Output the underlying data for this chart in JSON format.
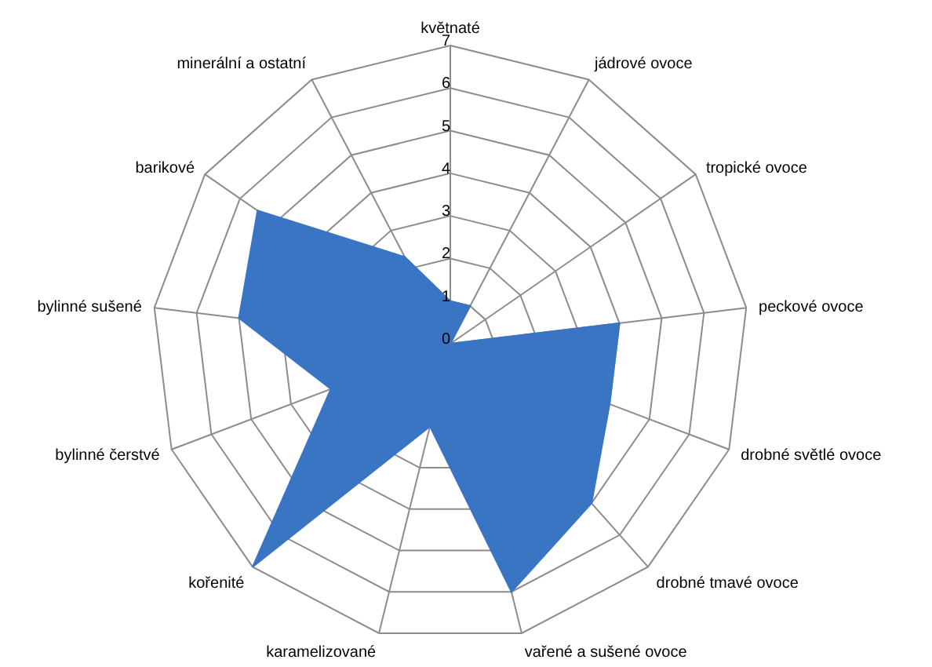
{
  "chart_data": {
    "type": "radar",
    "categories": [
      "květnaté",
      "jádrové ovoce",
      "tropické ovoce",
      "peckové ovoce",
      "drobné světlé ovoce",
      "drobné tmavé ovoce",
      "vařené a sušené ovoce",
      "karamelizované",
      "kořenité",
      "bylinné čerstvé",
      "bylinné sušené",
      "barikové",
      "minerální a ostatní"
    ],
    "series": [
      {
        "color": "#3a75c4",
        "values": [
          1,
          1,
          0,
          4,
          4,
          5,
          6,
          2,
          7,
          3,
          5,
          5.5,
          2.3
        ]
      }
    ],
    "ylim": [
      0,
      7
    ],
    "yticks": [
      0,
      1,
      2,
      3,
      4,
      5,
      6,
      7
    ],
    "legend": false
  }
}
